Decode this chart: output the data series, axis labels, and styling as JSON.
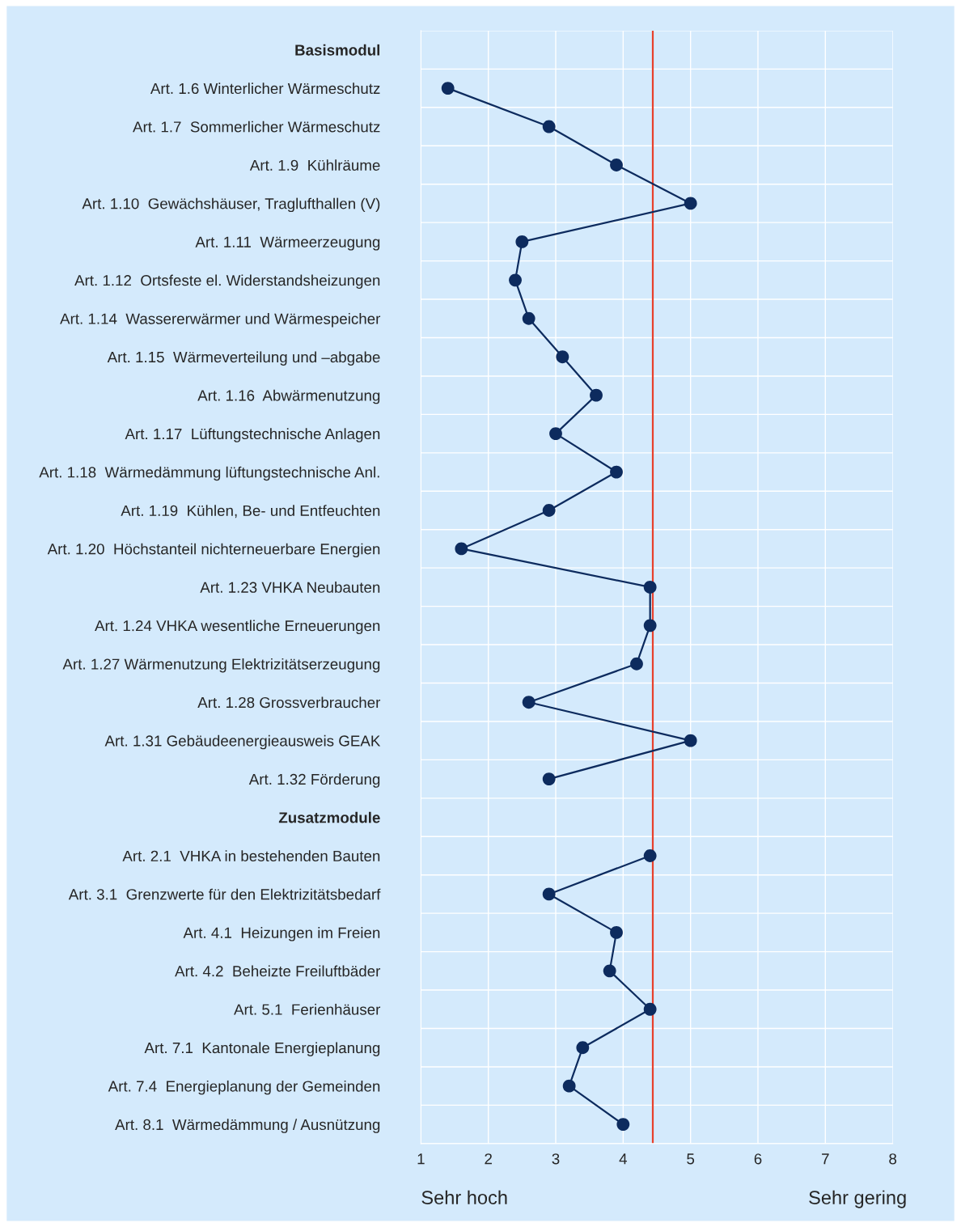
{
  "chart_data": {
    "type": "line",
    "orientation": "horizontal",
    "categories": [
      "Basismodul",
      "Art. 1.6 Winterlicher Wärmeschutz",
      "Art. 1.7  Sommerlicher Wärmeschutz",
      "Art. 1.9  Kühlräume",
      "Art. 1.10  Gewächshäuser, Traglufthallen (V)",
      "Art. 1.11  Wärmeerzeugung",
      "Art. 1.12  Ortsfeste el. Widerstandsheizungen",
      "Art. 1.14  Wassererwärmer und Wärmespeicher",
      "Art. 1.15  Wärmeverteilung und –abgabe",
      "Art. 1.16  Abwärmenutzung",
      "Art. 1.17  Lüftungstechnische Anlagen",
      "Art. 1.18  Wärmedämmung lüftungstechnische Anl.",
      "Art. 1.19  Kühlen, Be- und Entfeuchten",
      "Art. 1.20  Höchstanteil nichterneuerbare Energien",
      "Art. 1.23 VHKA Neubauten",
      "Art. 1.24 VHKA wesentliche Erneuerungen",
      "Art. 1.27 Wärmenutzung Elektrizitätserzeugung",
      "Art. 1.28 Grossverbraucher",
      "Art. 1.31 Gebäudeenergieausweis GEAK",
      "Art. 1.32 Förderung",
      "Zusatzmodule",
      "Art. 2.1  VHKA in bestehenden Bauten",
      "Art. 3.1  Grenzwerte für den Elektrizitätsbedarf",
      "Art. 4.1  Heizungen im Freien",
      "Art. 4.2  Beheizte Freiluftbäder",
      "Art. 5.1  Ferienhäuser",
      "Art. 7.1  Kantonale Energieplanung",
      "Art. 7.4  Energieplanung der Gemeinden",
      "Art. 8.1  Wärmedämmung / Ausnützung"
    ],
    "series": [
      {
        "color": "#0d2b5e",
        "values": [
          null,
          1.4,
          2.9,
          3.9,
          5.0,
          2.5,
          2.4,
          2.6,
          3.1,
          3.6,
          3.0,
          3.9,
          2.9,
          1.6,
          4.4,
          4.4,
          4.2,
          2.6,
          5.0,
          2.9,
          null,
          4.4,
          2.9,
          3.9,
          3.8,
          4.4,
          3.4,
          3.2,
          4.0
        ]
      }
    ],
    "xlim": [
      1,
      8
    ],
    "xticks": [
      1,
      2,
      3,
      4,
      5,
      6,
      7,
      8
    ],
    "ref_lines": [
      {
        "axis": "x",
        "value": 4.44,
        "color": "#e8412c"
      }
    ],
    "annotations": [
      "Sehr hoch",
      "Sehr gering"
    ],
    "grid": true,
    "legend": false,
    "marker": "circle",
    "line_style": "solid"
  }
}
